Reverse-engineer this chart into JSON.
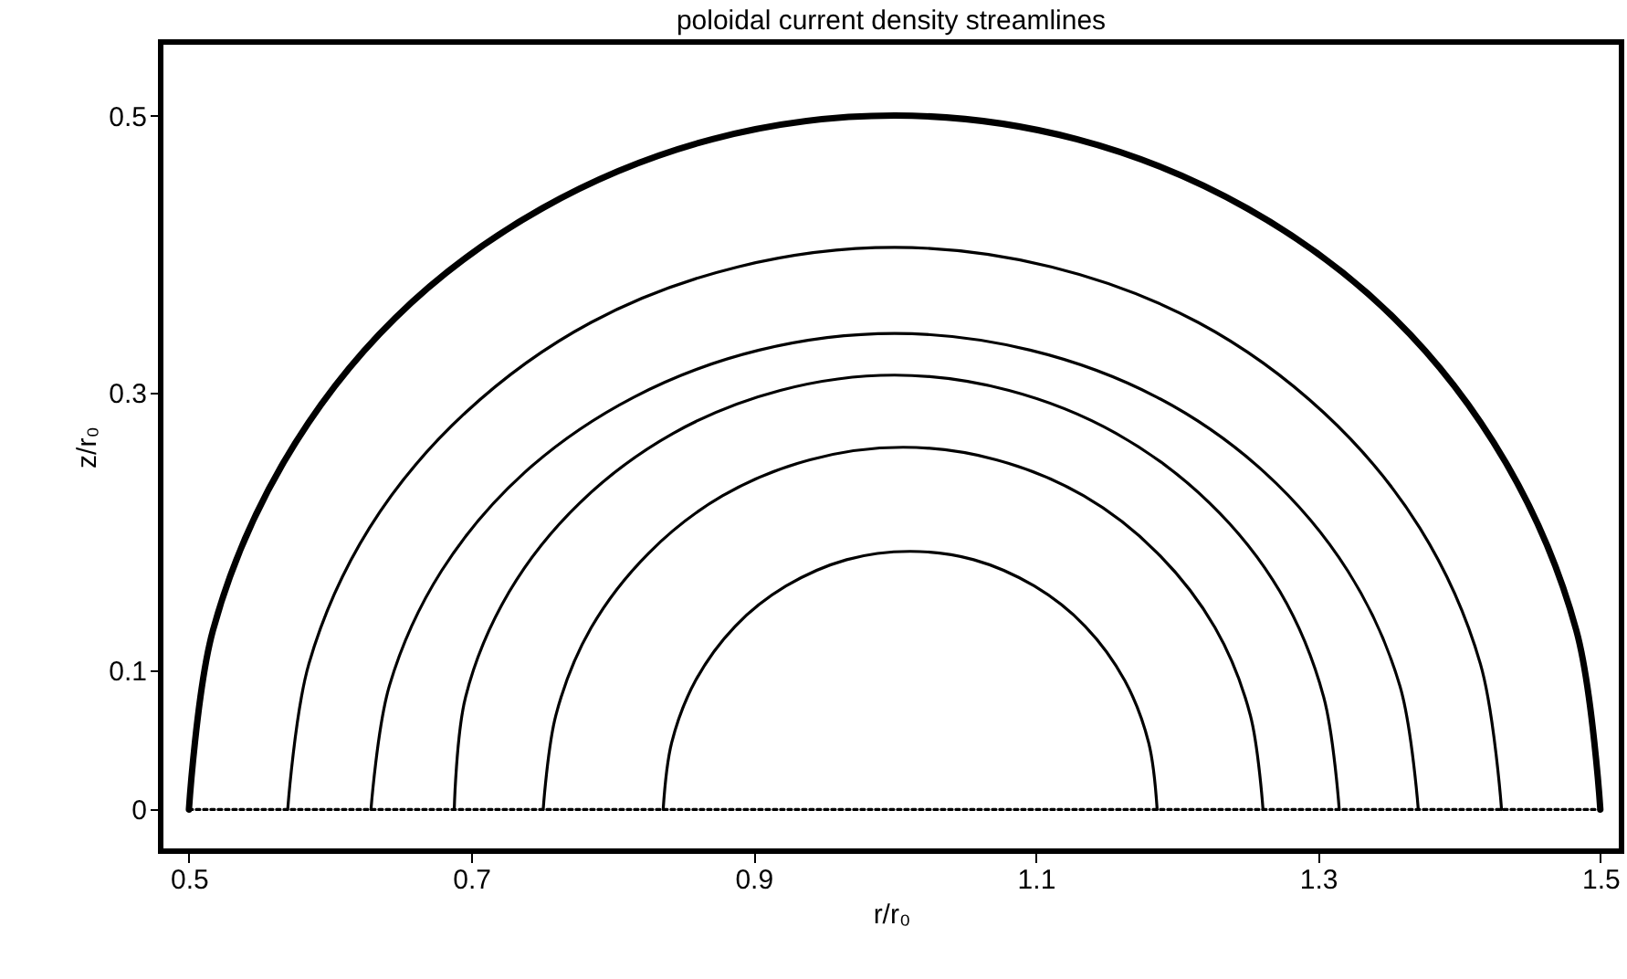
{
  "chart_data": {
    "type": "line",
    "title": "poloidal current density streamlines",
    "xlabel": "r/r₀",
    "ylabel": "z/r₀",
    "xlim": [
      0.48,
      1.515
    ],
    "ylim": [
      -0.03,
      0.553
    ],
    "xticks": [
      0.5,
      0.7,
      0.9,
      1.1,
      1.3,
      1.5
    ],
    "yticks": [
      0,
      0.1,
      0.3,
      0.5
    ],
    "marker": "none",
    "series": [
      {
        "color": "#000000",
        "x": [
          1.5,
          1.483,
          1.433,
          1.354,
          1.25,
          1.129,
          1.0,
          0.871,
          0.75,
          0.646,
          0.567,
          0.517,
          0.5
        ],
        "values": [
          0,
          0.129,
          0.25,
          0.354,
          0.433,
          0.483,
          0.5,
          0.483,
          0.433,
          0.354,
          0.25,
          0.129,
          0
        ]
      },
      {
        "color": "#000000",
        "x": [
          1.43,
          1.415,
          1.372,
          1.304,
          1.215,
          1.111,
          1.0,
          0.889,
          0.785,
          0.696,
          0.628,
          0.585,
          0.57
        ],
        "values": [
          0,
          0.105,
          0.203,
          0.286,
          0.351,
          0.391,
          0.405,
          0.391,
          0.351,
          0.286,
          0.203,
          0.105,
          0
        ]
      },
      {
        "color": "#000000",
        "x": [
          1.371,
          1.358,
          1.321,
          1.262,
          1.186,
          1.096,
          1.0,
          0.904,
          0.815,
          0.738,
          0.679,
          0.642,
          0.629
        ],
        "values": [
          0,
          0.089,
          0.172,
          0.243,
          0.297,
          0.331,
          0.343,
          0.331,
          0.297,
          0.243,
          0.172,
          0.089,
          0
        ]
      },
      {
        "color": "#000000",
        "x": [
          1.315,
          1.304,
          1.273,
          1.223,
          1.157,
          1.081,
          1.0,
          0.919,
          0.843,
          0.777,
          0.727,
          0.696,
          0.688
        ],
        "values": [
          0,
          0.081,
          0.157,
          0.221,
          0.271,
          0.302,
          0.313,
          0.302,
          0.271,
          0.221,
          0.157,
          0.081,
          0
        ]
      },
      {
        "color": "#000000",
        "x": [
          1.261,
          1.252,
          1.227,
          1.186,
          1.134,
          1.072,
          1.006,
          0.94,
          0.878,
          0.826,
          0.785,
          0.76,
          0.751
        ],
        "values": [
          0,
          0.068,
          0.131,
          0.185,
          0.226,
          0.252,
          0.261,
          0.252,
          0.226,
          0.185,
          0.131,
          0.068,
          0
        ]
      },
      {
        "color": "#000000",
        "x": [
          1.186,
          1.18,
          1.163,
          1.135,
          1.099,
          1.056,
          1.011,
          0.966,
          0.923,
          0.887,
          0.859,
          0.842,
          0.836
        ],
        "values": [
          0,
          0.048,
          0.093,
          0.132,
          0.161,
          0.18,
          0.186,
          0.18,
          0.161,
          0.132,
          0.093,
          0.048,
          0
        ]
      },
      {
        "color": "#000000",
        "line_style": "dotted",
        "x": [
          0.5,
          1.5
        ],
        "values": [
          0,
          0
        ]
      }
    ]
  }
}
